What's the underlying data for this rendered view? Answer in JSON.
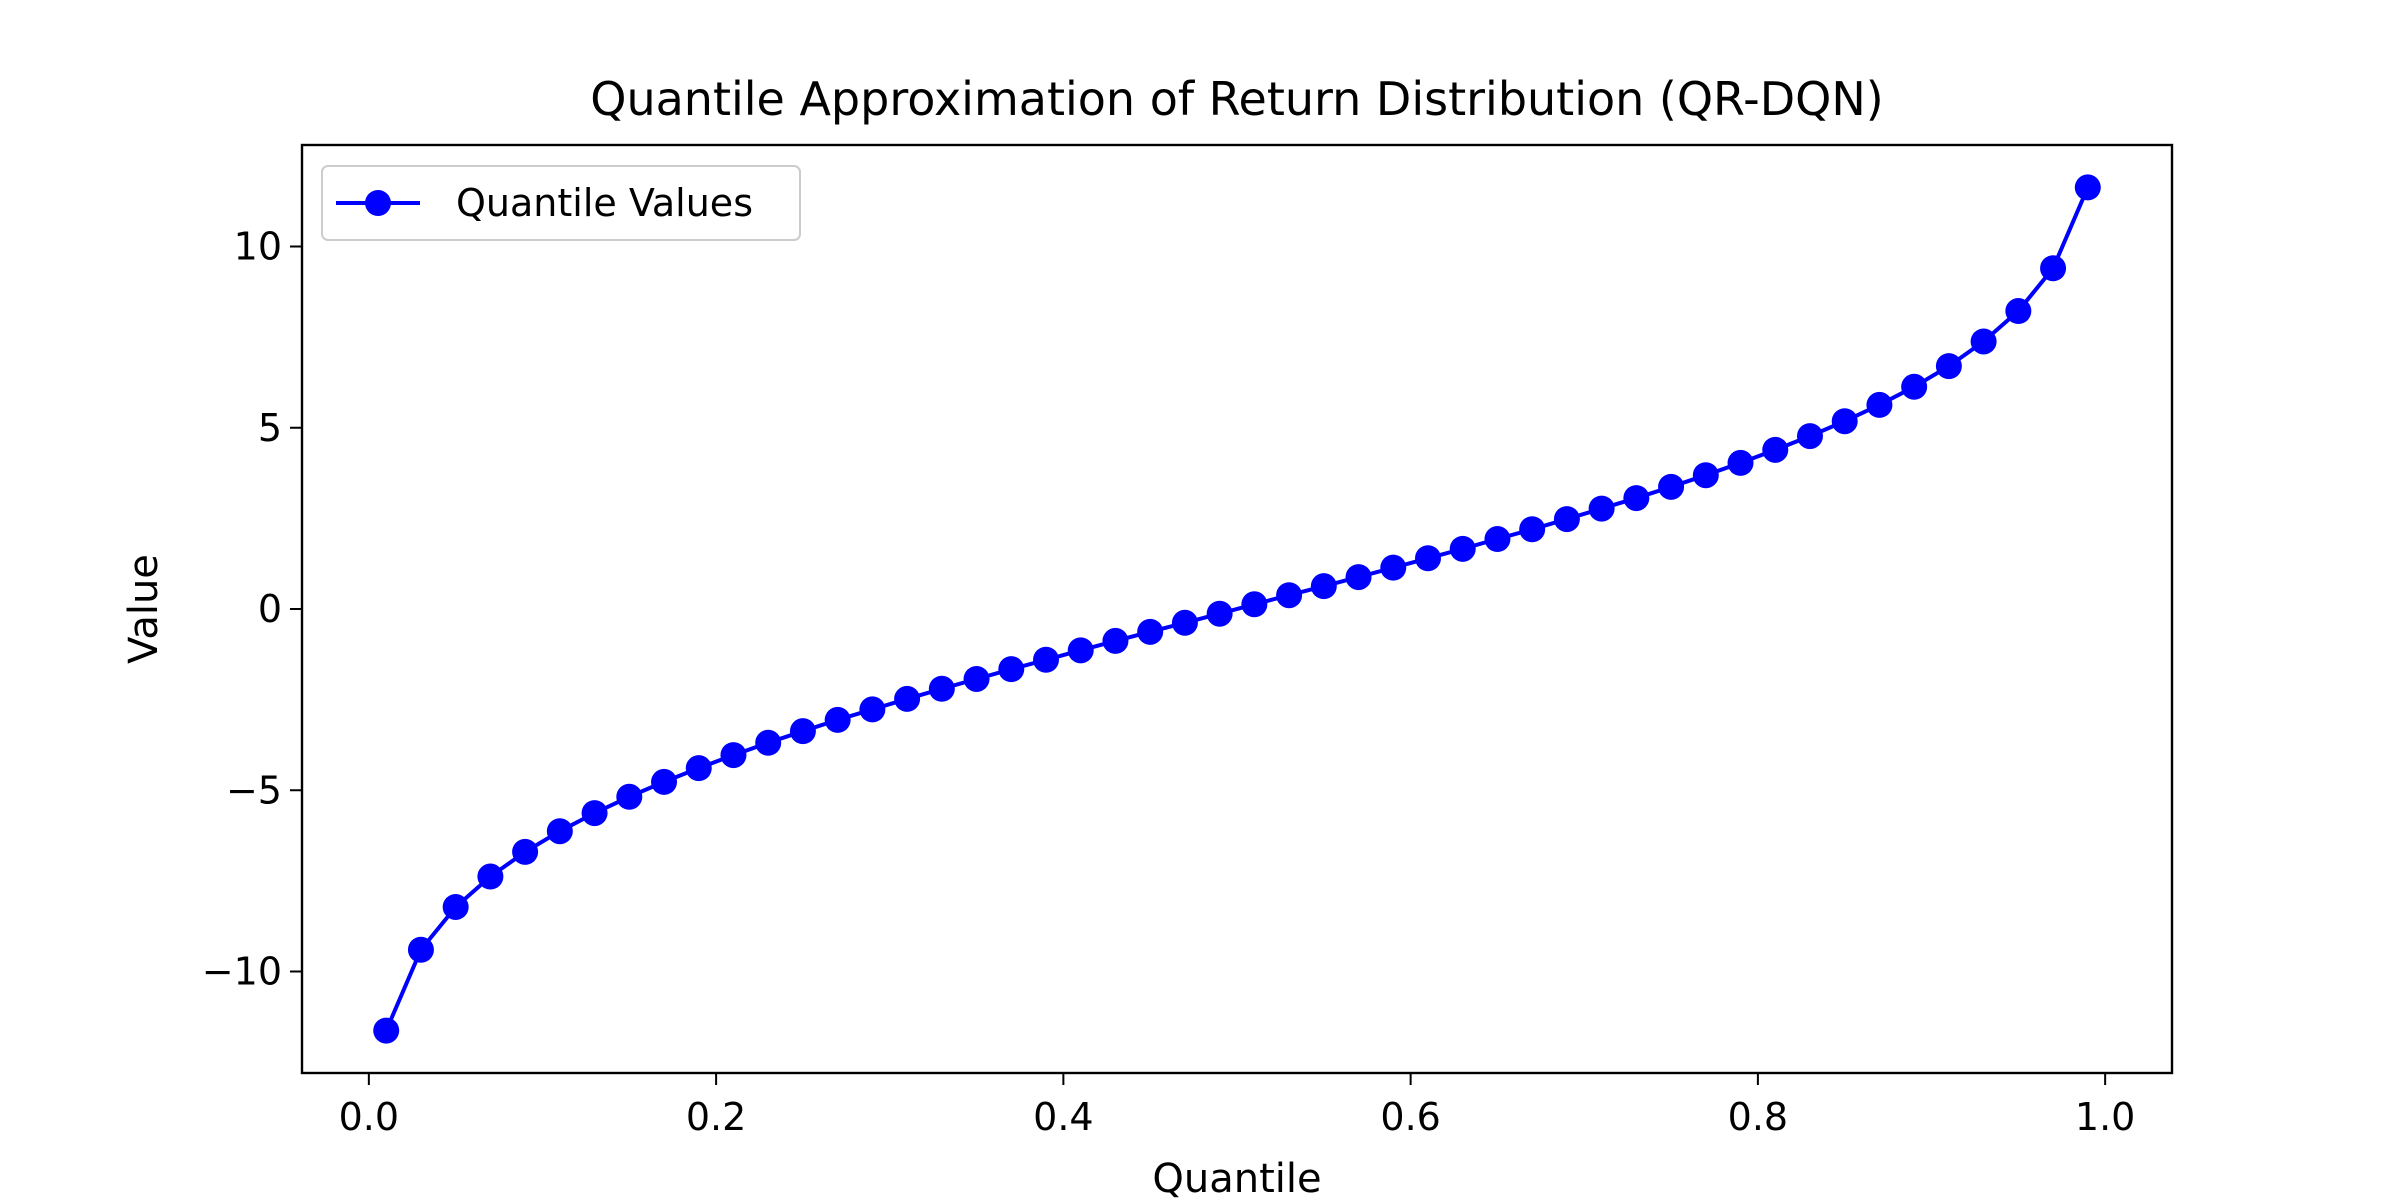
{
  "chart_data": {
    "type": "line",
    "title": "Quantile Approximation of Return Distribution (QR-DQN)",
    "xlabel": "Quantile",
    "ylabel": "Value",
    "xlim": [
      -0.0385,
      1.0385
    ],
    "ylim": [
      -12.8,
      12.8
    ],
    "xticks": [
      0.0,
      0.2,
      0.4,
      0.6,
      0.8,
      1.0
    ],
    "xtick_labels": [
      "0.0",
      "0.2",
      "0.4",
      "0.6",
      "0.8",
      "1.0"
    ],
    "yticks": [
      -10,
      -5,
      0,
      5,
      10
    ],
    "ytick_labels": [
      "−10",
      "−5",
      "0",
      "5",
      "10"
    ],
    "grid": false,
    "legend": {
      "placement": "top-left",
      "entries": [
        "Quantile Values"
      ]
    },
    "series": [
      {
        "name": "Quantile Values",
        "color": "#0000ff",
        "marker": "circle",
        "x": [
          0.01,
          0.03,
          0.05,
          0.07,
          0.09,
          0.11,
          0.13,
          0.15,
          0.17,
          0.19,
          0.21,
          0.23,
          0.25,
          0.27,
          0.29,
          0.31,
          0.33,
          0.35,
          0.37,
          0.39,
          0.41,
          0.43,
          0.45,
          0.47,
          0.49,
          0.51,
          0.53,
          0.55,
          0.57,
          0.59,
          0.61,
          0.63,
          0.65,
          0.67,
          0.69,
          0.71,
          0.73,
          0.75,
          0.77,
          0.79,
          0.81,
          0.83,
          0.85,
          0.87,
          0.89,
          0.91,
          0.93,
          0.95,
          0.97,
          0.99
        ],
        "values": [
          -11.63,
          -9.4,
          -8.22,
          -7.38,
          -6.7,
          -6.13,
          -5.63,
          -5.18,
          -4.77,
          -4.39,
          -4.03,
          -3.69,
          -3.37,
          -3.06,
          -2.77,
          -2.48,
          -2.2,
          -1.93,
          -1.66,
          -1.4,
          -1.14,
          -0.88,
          -0.63,
          -0.38,
          -0.13,
          0.13,
          0.38,
          0.63,
          0.88,
          1.14,
          1.4,
          1.66,
          1.93,
          2.2,
          2.48,
          2.77,
          3.06,
          3.37,
          3.69,
          4.03,
          4.39,
          4.77,
          5.18,
          5.63,
          6.13,
          6.7,
          7.38,
          8.22,
          9.4,
          11.63
        ]
      }
    ]
  }
}
